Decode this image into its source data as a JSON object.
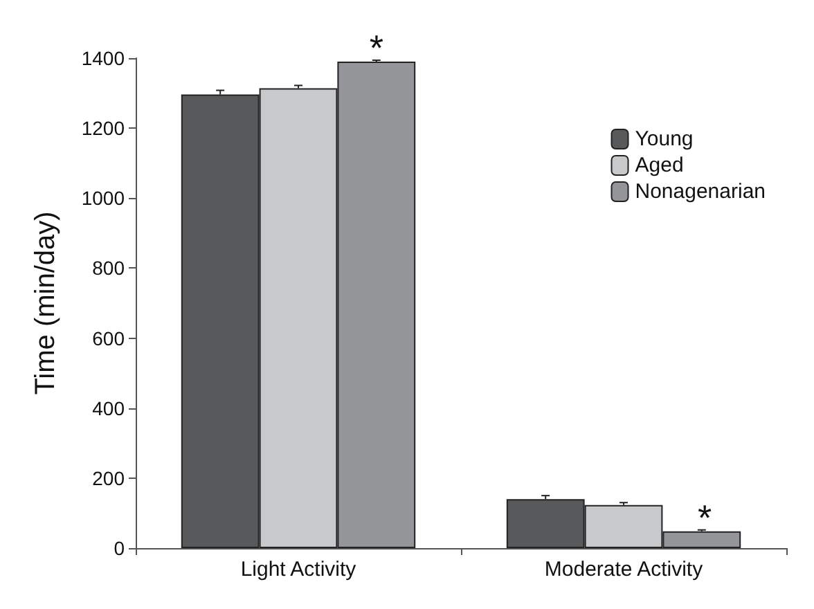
{
  "chart_data": {
    "type": "bar",
    "ylabel": "Time (min/day)",
    "categories": [
      "Light Activity",
      "Moderate Activity"
    ],
    "series": [
      {
        "name": "Young",
        "color": "#58595b",
        "values": [
          1296,
          140
        ],
        "errors": [
          12,
          10
        ]
      },
      {
        "name": "Aged",
        "color": "#c8c9cb",
        "values": [
          1314,
          123
        ],
        "errors": [
          8,
          7
        ]
      },
      {
        "name": "Nonagenarian",
        "color": "#939598",
        "values": [
          1390,
          48
        ],
        "errors": [
          4,
          4
        ]
      }
    ],
    "ylim": [
      0,
      1400
    ],
    "yticks": [
      0,
      200,
      400,
      600,
      800,
      1000,
      1200,
      1400
    ],
    "grid": false,
    "legend": "top right",
    "annotations": [
      "*",
      "*"
    ]
  }
}
